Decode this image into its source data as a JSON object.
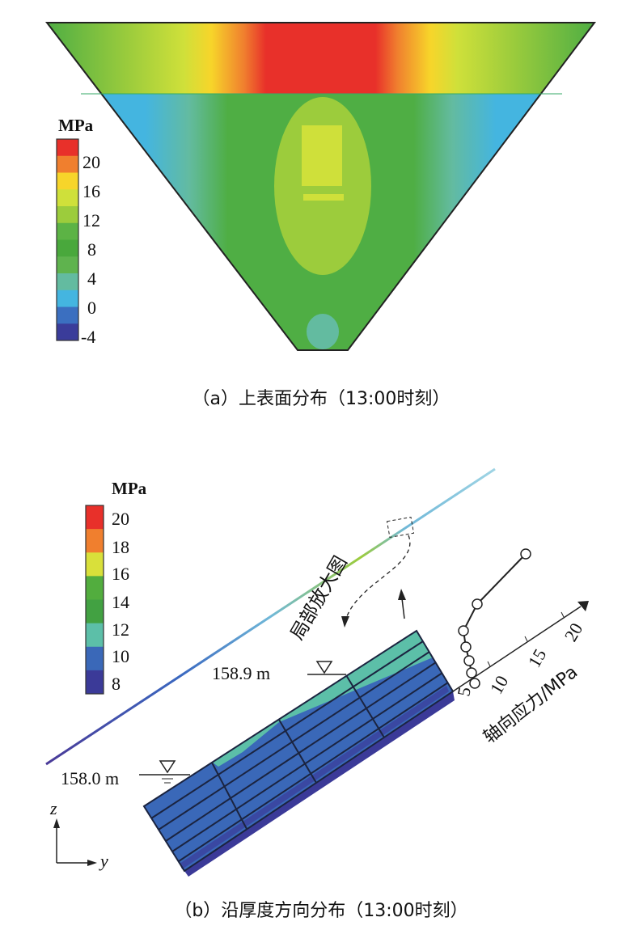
{
  "panel_a": {
    "legend_unit": "MPa",
    "legend_ticks": [
      "20",
      "16",
      "12",
      "8",
      "4",
      "0",
      "-4"
    ],
    "legend_colors": [
      "#e8302a",
      "#f07f2e",
      "#f7d52a",
      "#cfe03a",
      "#9ccc3c",
      "#5cb345",
      "#49a83c",
      "#5fb34e",
      "#63bba0",
      "#44b5e0",
      "#3b6fc0",
      "#3a3c9a"
    ],
    "caption": "（a）上表面分布（13:00时刻）"
  },
  "panel_b": {
    "legend_unit": "MPa",
    "legend_ticks": [
      "20",
      "18",
      "16",
      "14",
      "12",
      "10",
      "8"
    ],
    "legend_colors": [
      "#e8302a",
      "#f07f2e",
      "#d9e03a",
      "#52ad3e",
      "#42a142",
      "#5cbfa8",
      "#3a68b8",
      "#3b3a98"
    ],
    "level_high": "158.9 m",
    "level_low": "158.0 m",
    "zoom_label": "局部放大图",
    "stress_axis_ticks": [
      "5",
      "10",
      "15",
      "20"
    ],
    "stress_axis_label": "轴向应力/MPa",
    "axis_z": "z",
    "axis_y": "y",
    "caption": "（b）沿厚度方向分布（13:00时刻）"
  }
}
